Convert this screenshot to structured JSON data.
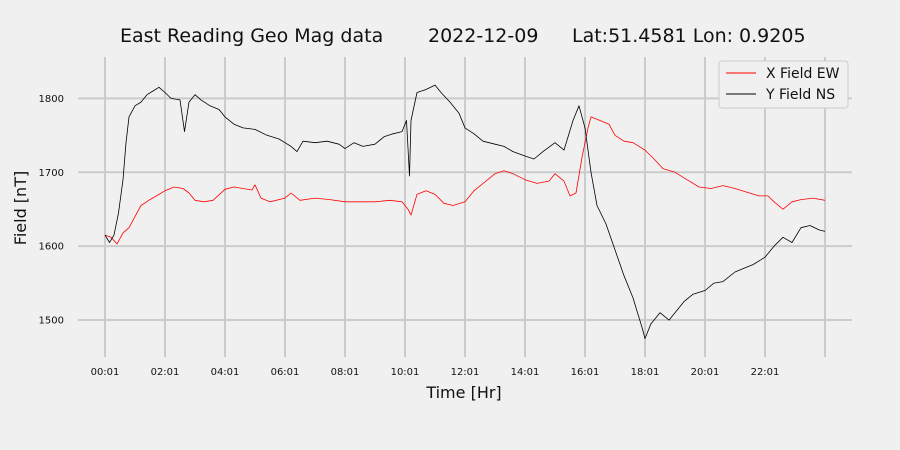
{
  "chart_data": {
    "type": "line",
    "title_parts": [
      "East Reading Geo Mag data",
      "2022-12-09",
      "Lat:51.4581  Lon: 0.9205"
    ],
    "xlabel": "Time  [Hr]",
    "ylabel": "Field  [nT]",
    "x_unit": "hours since 00:01",
    "xlim": [
      -0.9,
      24.9
    ],
    "ylim": [
      1450,
      1856
    ],
    "x_ticks": [
      {
        "hour": 0,
        "label": "00:01"
      },
      {
        "hour": 2,
        "label": "02:01"
      },
      {
        "hour": 4,
        "label": "04:01"
      },
      {
        "hour": 6,
        "label": "06:01"
      },
      {
        "hour": 8,
        "label": "08:01"
      },
      {
        "hour": 10,
        "label": "10:01"
      },
      {
        "hour": 12,
        "label": "12:01"
      },
      {
        "hour": 14,
        "label": "14:01"
      },
      {
        "hour": 16,
        "label": "16:01"
      },
      {
        "hour": 18,
        "label": "18:01"
      },
      {
        "hour": 20,
        "label": "20:01"
      },
      {
        "hour": 22,
        "label": "22:01"
      },
      {
        "hour": 24,
        "label": ""
      }
    ],
    "y_ticks": [
      1500,
      1600,
      1700,
      1800
    ],
    "grid": true,
    "legend_position": "top-right",
    "series": [
      {
        "name": "X Field EW",
        "color": "#ff0000",
        "points": [
          [
            0,
            1615
          ],
          [
            0.2,
            1612
          ],
          [
            0.4,
            1603
          ],
          [
            0.6,
            1618
          ],
          [
            0.8,
            1625
          ],
          [
            1,
            1640
          ],
          [
            1.2,
            1655
          ],
          [
            1.5,
            1663
          ],
          [
            1.8,
            1670
          ],
          [
            2,
            1675
          ],
          [
            2.3,
            1680
          ],
          [
            2.6,
            1678
          ],
          [
            2.8,
            1672
          ],
          [
            3,
            1662
          ],
          [
            3.3,
            1660
          ],
          [
            3.6,
            1662
          ],
          [
            4,
            1677
          ],
          [
            4.3,
            1680
          ],
          [
            4.6,
            1678
          ],
          [
            4.9,
            1676
          ],
          [
            5,
            1683
          ],
          [
            5.2,
            1665
          ],
          [
            5.5,
            1660
          ],
          [
            6,
            1665
          ],
          [
            6.2,
            1672
          ],
          [
            6.5,
            1662
          ],
          [
            7,
            1665
          ],
          [
            7.5,
            1663
          ],
          [
            8,
            1660
          ],
          [
            8.5,
            1660
          ],
          [
            9,
            1660
          ],
          [
            9.5,
            1662
          ],
          [
            9.9,
            1660
          ],
          [
            10.1,
            1650
          ],
          [
            10.2,
            1642
          ],
          [
            10.4,
            1670
          ],
          [
            10.7,
            1675
          ],
          [
            11,
            1670
          ],
          [
            11.3,
            1658
          ],
          [
            11.6,
            1655
          ],
          [
            12,
            1660
          ],
          [
            12.3,
            1675
          ],
          [
            12.7,
            1688
          ],
          [
            13,
            1698
          ],
          [
            13.3,
            1702
          ],
          [
            13.6,
            1698
          ],
          [
            14,
            1690
          ],
          [
            14.4,
            1685
          ],
          [
            14.8,
            1688
          ],
          [
            15,
            1698
          ],
          [
            15.3,
            1688
          ],
          [
            15.5,
            1668
          ],
          [
            15.7,
            1672
          ],
          [
            15.9,
            1720
          ],
          [
            16.1,
            1760
          ],
          [
            16.2,
            1775
          ],
          [
            16.5,
            1770
          ],
          [
            16.8,
            1765
          ],
          [
            17,
            1750
          ],
          [
            17.3,
            1742
          ],
          [
            17.6,
            1740
          ],
          [
            18,
            1730
          ],
          [
            18.3,
            1718
          ],
          [
            18.6,
            1705
          ],
          [
            19,
            1700
          ],
          [
            19.4,
            1690
          ],
          [
            19.8,
            1680
          ],
          [
            20.2,
            1678
          ],
          [
            20.6,
            1682
          ],
          [
            21,
            1678
          ],
          [
            21.4,
            1673
          ],
          [
            21.8,
            1668
          ],
          [
            22.1,
            1668
          ],
          [
            22.3,
            1660
          ],
          [
            22.6,
            1650
          ],
          [
            22.9,
            1660
          ],
          [
            23.2,
            1663
          ],
          [
            23.6,
            1665
          ],
          [
            24,
            1662
          ]
        ]
      },
      {
        "name": "Y Field NS",
        "color": "#000000",
        "points": [
          [
            0,
            1615
          ],
          [
            0.15,
            1605
          ],
          [
            0.3,
            1615
          ],
          [
            0.45,
            1645
          ],
          [
            0.6,
            1690
          ],
          [
            0.7,
            1740
          ],
          [
            0.8,
            1775
          ],
          [
            1,
            1790
          ],
          [
            1.2,
            1795
          ],
          [
            1.4,
            1805
          ],
          [
            1.6,
            1810
          ],
          [
            1.8,
            1815
          ],
          [
            2,
            1808
          ],
          [
            2.2,
            1800
          ],
          [
            2.5,
            1798
          ],
          [
            2.65,
            1755
          ],
          [
            2.8,
            1795
          ],
          [
            3,
            1805
          ],
          [
            3.2,
            1798
          ],
          [
            3.5,
            1790
          ],
          [
            3.8,
            1785
          ],
          [
            4,
            1775
          ],
          [
            4.3,
            1765
          ],
          [
            4.6,
            1760
          ],
          [
            5,
            1758
          ],
          [
            5.4,
            1750
          ],
          [
            5.8,
            1745
          ],
          [
            6,
            1740
          ],
          [
            6.2,
            1735
          ],
          [
            6.4,
            1728
          ],
          [
            6.6,
            1742
          ],
          [
            7,
            1740
          ],
          [
            7.4,
            1742
          ],
          [
            7.8,
            1738
          ],
          [
            8,
            1732
          ],
          [
            8.3,
            1740
          ],
          [
            8.6,
            1735
          ],
          [
            9,
            1738
          ],
          [
            9.3,
            1748
          ],
          [
            9.6,
            1752
          ],
          [
            9.9,
            1755
          ],
          [
            10.05,
            1770
          ],
          [
            10.15,
            1695
          ],
          [
            10.2,
            1770
          ],
          [
            10.4,
            1808
          ],
          [
            10.7,
            1812
          ],
          [
            11,
            1818
          ],
          [
            11.2,
            1808
          ],
          [
            11.5,
            1795
          ],
          [
            11.8,
            1780
          ],
          [
            12,
            1760
          ],
          [
            12.3,
            1752
          ],
          [
            12.6,
            1742
          ],
          [
            13,
            1738
          ],
          [
            13.3,
            1735
          ],
          [
            13.6,
            1728
          ],
          [
            14,
            1722
          ],
          [
            14.3,
            1718
          ],
          [
            14.6,
            1728
          ],
          [
            15,
            1740
          ],
          [
            15.3,
            1730
          ],
          [
            15.6,
            1770
          ],
          [
            15.8,
            1790
          ],
          [
            16,
            1760
          ],
          [
            16.2,
            1700
          ],
          [
            16.4,
            1655
          ],
          [
            16.7,
            1630
          ],
          [
            17,
            1595
          ],
          [
            17.3,
            1560
          ],
          [
            17.6,
            1530
          ],
          [
            17.9,
            1490
          ],
          [
            18,
            1475
          ],
          [
            18.2,
            1495
          ],
          [
            18.5,
            1510
          ],
          [
            18.8,
            1500
          ],
          [
            19,
            1510
          ],
          [
            19.3,
            1525
          ],
          [
            19.6,
            1535
          ],
          [
            20,
            1540
          ],
          [
            20.3,
            1550
          ],
          [
            20.6,
            1552
          ],
          [
            21,
            1565
          ],
          [
            21.3,
            1570
          ],
          [
            21.6,
            1575
          ],
          [
            22,
            1585
          ],
          [
            22.3,
            1600
          ],
          [
            22.6,
            1612
          ],
          [
            22.9,
            1605
          ],
          [
            23.2,
            1625
          ],
          [
            23.5,
            1628
          ],
          [
            23.8,
            1622
          ],
          [
            24,
            1620
          ]
        ]
      }
    ]
  }
}
